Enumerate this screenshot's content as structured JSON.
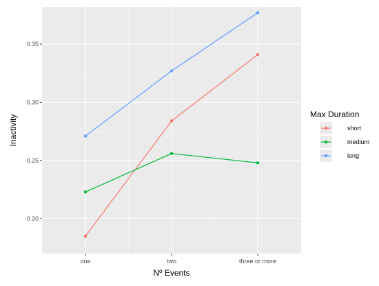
{
  "chart_data": {
    "type": "line",
    "xlabel": "Nº Events",
    "ylabel": "Inactivity",
    "categories": [
      "one",
      "two",
      "three or more"
    ],
    "ylim": [
      0.17,
      0.382
    ],
    "yticks": [
      0.2,
      0.25,
      0.3,
      0.35
    ],
    "ytick_labels": [
      "0.20",
      "0.25",
      "0.30",
      "0.35"
    ],
    "grid": true,
    "legend": {
      "title": "Max Duration",
      "position": "right"
    },
    "series": [
      {
        "name": "short",
        "color": "#F8766D",
        "values": [
          0.185,
          0.284,
          0.341
        ]
      },
      {
        "name": "medium",
        "color": "#00BA38",
        "values": [
          0.223,
          0.256,
          0.248
        ]
      },
      {
        "name": "long",
        "color": "#619CFF",
        "values": [
          0.271,
          0.327,
          0.377
        ]
      }
    ]
  }
}
